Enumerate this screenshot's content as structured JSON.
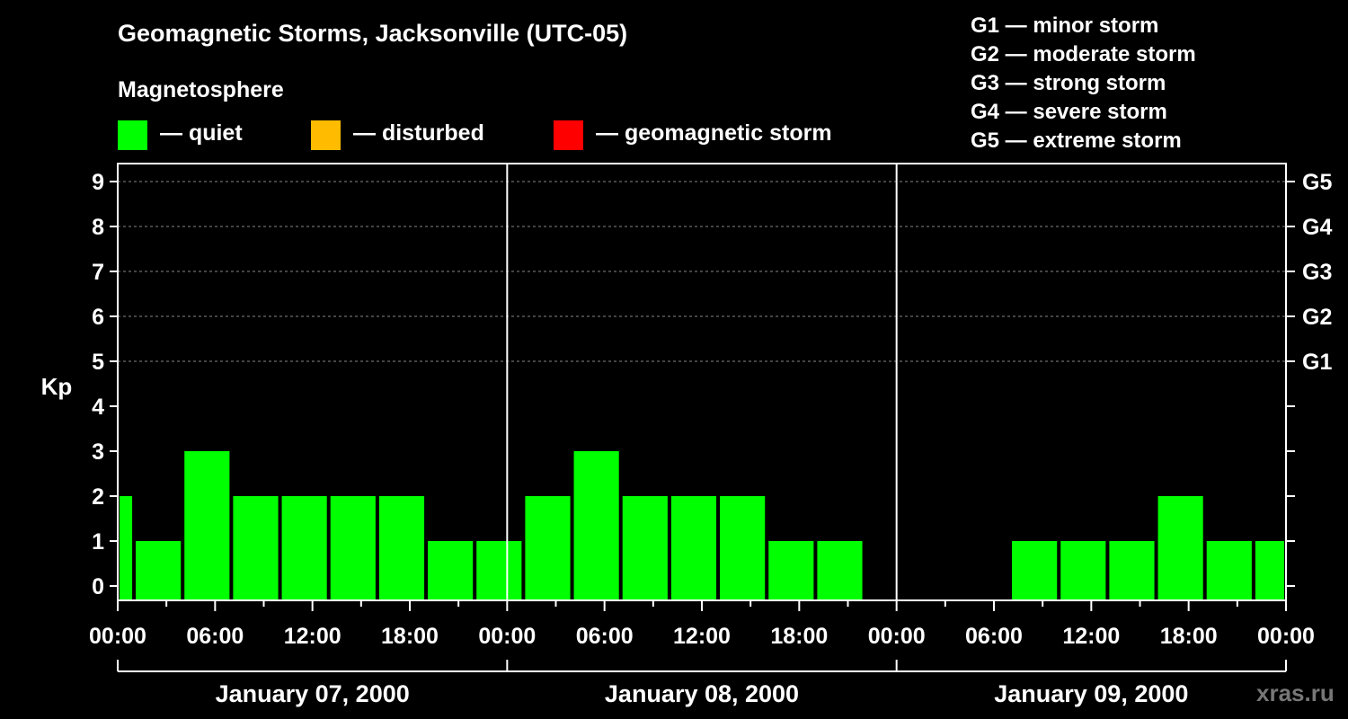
{
  "title": "Geomagnetic Storms, Jacksonville (UTC-05)",
  "subtitle": "Magnetosphere",
  "legend": [
    {
      "label": "— quiet",
      "color": "#00ff00"
    },
    {
      "label": "— disturbed",
      "color": "#ffbb00"
    },
    {
      "label": "— geomagnetic storm",
      "color": "#ff0000"
    }
  ],
  "storm_levels": [
    "G1 — minor storm",
    "G2 — moderate storm",
    "G3 — strong storm",
    "G4 — severe storm",
    "G5 — extreme storm"
  ],
  "watermark": "xras.ru",
  "chart_data": {
    "type": "bar",
    "ylabel": "Kp",
    "ylim": [
      0,
      9
    ],
    "yticks": [
      0,
      1,
      2,
      3,
      4,
      5,
      6,
      7,
      8,
      9
    ],
    "right_ticks": [
      {
        "value": 5,
        "label": "G1"
      },
      {
        "value": 6,
        "label": "G2"
      },
      {
        "value": 7,
        "label": "G3"
      },
      {
        "value": 8,
        "label": "G4"
      },
      {
        "value": 9,
        "label": "G5"
      }
    ],
    "grid": "dashed, Kp 5-9",
    "x_range_hours": [
      0,
      72
    ],
    "xticks": [
      {
        "hour": 0,
        "label": "00:00"
      },
      {
        "hour": 6,
        "label": "06:00"
      },
      {
        "hour": 12,
        "label": "12:00"
      },
      {
        "hour": 18,
        "label": "18:00"
      },
      {
        "hour": 24,
        "label": "00:00"
      },
      {
        "hour": 30,
        "label": "06:00"
      },
      {
        "hour": 36,
        "label": "12:00"
      },
      {
        "hour": 42,
        "label": "18:00"
      },
      {
        "hour": 48,
        "label": "00:00"
      },
      {
        "hour": 54,
        "label": "06:00"
      },
      {
        "hour": 60,
        "label": "12:00"
      },
      {
        "hour": 66,
        "label": "18:00"
      },
      {
        "hour": 72,
        "label": "00:00"
      }
    ],
    "days": [
      "January 07, 2000",
      "January 08, 2000",
      "January 09, 2000"
    ],
    "bars": [
      {
        "start": 0,
        "end": 1,
        "kp": 2,
        "level": "quiet"
      },
      {
        "start": 1,
        "end": 4,
        "kp": 1,
        "level": "quiet"
      },
      {
        "start": 4,
        "end": 7,
        "kp": 3,
        "level": "quiet"
      },
      {
        "start": 7,
        "end": 10,
        "kp": 2,
        "level": "quiet"
      },
      {
        "start": 10,
        "end": 13,
        "kp": 2,
        "level": "quiet"
      },
      {
        "start": 13,
        "end": 16,
        "kp": 2,
        "level": "quiet"
      },
      {
        "start": 16,
        "end": 19,
        "kp": 2,
        "level": "quiet"
      },
      {
        "start": 19,
        "end": 22,
        "kp": 1,
        "level": "quiet"
      },
      {
        "start": 22,
        "end": 25,
        "kp": 1,
        "level": "quiet"
      },
      {
        "start": 25,
        "end": 28,
        "kp": 2,
        "level": "quiet"
      },
      {
        "start": 28,
        "end": 31,
        "kp": 3,
        "level": "quiet"
      },
      {
        "start": 31,
        "end": 34,
        "kp": 2,
        "level": "quiet"
      },
      {
        "start": 34,
        "end": 37,
        "kp": 2,
        "level": "quiet"
      },
      {
        "start": 37,
        "end": 40,
        "kp": 2,
        "level": "quiet"
      },
      {
        "start": 40,
        "end": 43,
        "kp": 1,
        "level": "quiet"
      },
      {
        "start": 43,
        "end": 46,
        "kp": 1,
        "level": "quiet"
      },
      {
        "start": 55,
        "end": 58,
        "kp": 1,
        "level": "quiet"
      },
      {
        "start": 58,
        "end": 61,
        "kp": 1,
        "level": "quiet"
      },
      {
        "start": 61,
        "end": 64,
        "kp": 1,
        "level": "quiet"
      },
      {
        "start": 64,
        "end": 67,
        "kp": 2,
        "level": "quiet"
      },
      {
        "start": 67,
        "end": 70,
        "kp": 1,
        "level": "quiet"
      },
      {
        "start": 70,
        "end": 72,
        "kp": 1,
        "level": "quiet"
      }
    ]
  }
}
